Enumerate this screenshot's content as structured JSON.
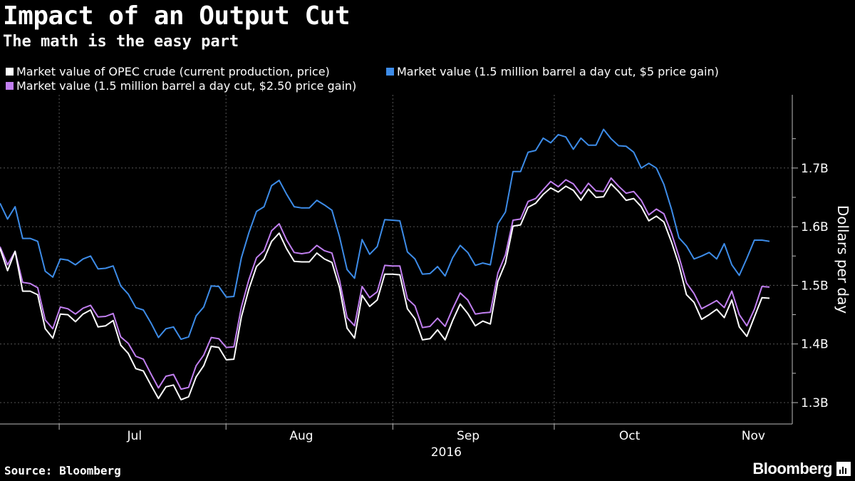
{
  "header": {
    "title": "Impact of an Output Cut",
    "subtitle": "The math is the easy part"
  },
  "footer": {
    "source": "Source: Bloomberg",
    "brand": "Bloomberg"
  },
  "chart_data": {
    "type": "line",
    "title": "Impact of an Output Cut",
    "subtitle": "The math is the easy part",
    "ylabel": "Dollars per day",
    "xlabel": "2016",
    "y_unit": "billion dollars per day",
    "ylim": [
      1.26,
      1.81
    ],
    "y_ticks": [
      1.3,
      1.4,
      1.5,
      1.6,
      1.7
    ],
    "y_tick_labels": [
      "1.3B",
      "1.4B",
      "1.5B",
      "1.6B",
      "1.7B"
    ],
    "x_range": [
      "2016-06-20",
      "2016-11-10"
    ],
    "x_month_labels": [
      {
        "label": "Jul",
        "date": "2016-07-15"
      },
      {
        "label": "Aug",
        "date": "2016-08-15"
      },
      {
        "label": "Sep",
        "date": "2016-09-15"
      },
      {
        "label": "Oct",
        "date": "2016-10-15"
      },
      {
        "label": "Nov",
        "date": "2016-11-07"
      }
    ],
    "x_month_boundaries": [
      "2016-07-01",
      "2016-08-01",
      "2016-09-01",
      "2016-10-01"
    ],
    "year_label": "2016",
    "grid": true,
    "legend_position": "top-left",
    "series": [
      {
        "name": "Market value of OPEC crude (current production, price)",
        "color": "#ffffff",
        "values": [
          1.563,
          1.525,
          1.558,
          1.49,
          1.49,
          1.484,
          1.426,
          1.41,
          1.451,
          1.45,
          1.438,
          1.451,
          1.458,
          1.429,
          1.431,
          1.44,
          1.398,
          1.384,
          1.358,
          1.354,
          1.33,
          1.307,
          1.327,
          1.33,
          1.305,
          1.31,
          1.344,
          1.363,
          1.396,
          1.394,
          1.373,
          1.374,
          1.446,
          1.494,
          1.532,
          1.545,
          1.575,
          1.589,
          1.562,
          1.541,
          1.54,
          1.54,
          1.555,
          1.545,
          1.539,
          1.496,
          1.427,
          1.41,
          1.483,
          1.464,
          1.475,
          1.519,
          1.519,
          1.518,
          1.46,
          1.443,
          1.407,
          1.409,
          1.424,
          1.407,
          1.44,
          1.468,
          1.452,
          1.431,
          1.439,
          1.434,
          1.507,
          1.538,
          1.601,
          1.603,
          1.633,
          1.64,
          1.655,
          1.666,
          1.659,
          1.669,
          1.662,
          1.645,
          1.664,
          1.65,
          1.651,
          1.673,
          1.66,
          1.645,
          1.648,
          1.634,
          1.61,
          1.618,
          1.608,
          1.574,
          1.535,
          1.484,
          1.471,
          1.442,
          1.45,
          1.459,
          1.445,
          1.475,
          1.429,
          1.413,
          1.446,
          1.479,
          1.478
        ]
      },
      {
        "name": "Market value (1.5 million barrel a day cut, $2.50 price gain)",
        "color": "#c17ff0",
        "values": [
          1.566,
          1.535,
          1.558,
          1.505,
          1.503,
          1.496,
          1.441,
          1.426,
          1.463,
          1.46,
          1.451,
          1.461,
          1.466,
          1.446,
          1.447,
          1.452,
          1.412,
          1.401,
          1.379,
          1.374,
          1.349,
          1.325,
          1.345,
          1.348,
          1.323,
          1.326,
          1.363,
          1.381,
          1.411,
          1.409,
          1.394,
          1.395,
          1.463,
          1.51,
          1.547,
          1.559,
          1.593,
          1.605,
          1.577,
          1.556,
          1.554,
          1.556,
          1.568,
          1.559,
          1.555,
          1.509,
          1.445,
          1.431,
          1.498,
          1.479,
          1.489,
          1.534,
          1.533,
          1.533,
          1.477,
          1.465,
          1.428,
          1.43,
          1.444,
          1.43,
          1.46,
          1.487,
          1.475,
          1.451,
          1.453,
          1.454,
          1.521,
          1.552,
          1.611,
          1.613,
          1.643,
          1.648,
          1.663,
          1.677,
          1.668,
          1.68,
          1.673,
          1.656,
          1.674,
          1.661,
          1.66,
          1.683,
          1.669,
          1.657,
          1.66,
          1.645,
          1.62,
          1.63,
          1.622,
          1.589,
          1.549,
          1.504,
          1.486,
          1.46,
          1.467,
          1.474,
          1.462,
          1.49,
          1.45,
          1.431,
          1.459,
          1.498,
          1.497
        ]
      },
      {
        "name": "Market value (1.5 million barrel a day cut, $5 price gain)",
        "color": "#3d8ce8",
        "values": [
          1.64,
          1.613,
          1.634,
          1.58,
          1.58,
          1.575,
          1.524,
          1.514,
          1.545,
          1.543,
          1.535,
          1.545,
          1.55,
          1.528,
          1.529,
          1.533,
          1.499,
          1.485,
          1.462,
          1.458,
          1.436,
          1.411,
          1.426,
          1.429,
          1.408,
          1.412,
          1.448,
          1.463,
          1.499,
          1.498,
          1.48,
          1.481,
          1.547,
          1.59,
          1.626,
          1.634,
          1.67,
          1.679,
          1.655,
          1.634,
          1.632,
          1.632,
          1.645,
          1.637,
          1.628,
          1.583,
          1.527,
          1.512,
          1.578,
          1.553,
          1.566,
          1.612,
          1.611,
          1.61,
          1.557,
          1.545,
          1.519,
          1.52,
          1.532,
          1.516,
          1.547,
          1.568,
          1.556,
          1.534,
          1.538,
          1.535,
          1.605,
          1.625,
          1.694,
          1.694,
          1.727,
          1.73,
          1.751,
          1.743,
          1.757,
          1.753,
          1.732,
          1.751,
          1.739,
          1.739,
          1.766,
          1.75,
          1.738,
          1.737,
          1.727,
          1.7,
          1.708,
          1.7,
          1.672,
          1.63,
          1.581,
          1.567,
          1.545,
          1.55,
          1.556,
          1.545,
          1.571,
          1.535,
          1.517,
          1.546,
          1.577,
          1.577,
          1.575
        ]
      }
    ]
  }
}
